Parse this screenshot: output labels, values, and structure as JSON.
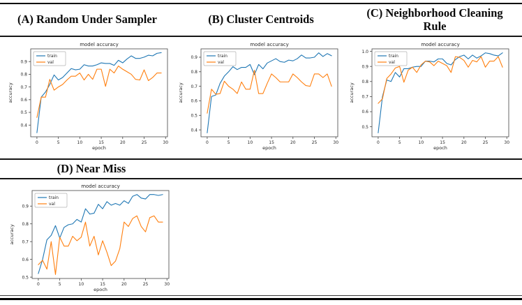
{
  "panels": [
    {
      "label": "(A) Random Under Sampler"
    },
    {
      "label": "(B) Cluster Centroids"
    },
    {
      "label": "(C) Neighborhood Cleaning Rule"
    },
    {
      "label": "(D) Near Miss"
    }
  ],
  "colors": {
    "train": "#1f77b4",
    "val": "#ff7f0e",
    "spine": "#454545",
    "chart_text": "#262626",
    "legend_border": "#b3b3b3",
    "rule": "#000000"
  },
  "epochs": [
    0,
    1,
    2,
    3,
    4,
    5,
    6,
    7,
    8,
    9,
    10,
    11,
    12,
    13,
    14,
    15,
    16,
    17,
    18,
    19,
    20,
    21,
    22,
    23,
    24,
    25,
    26,
    27,
    28,
    29
  ],
  "chart_data": [
    {
      "type": "line",
      "panel": "(A) Random Under Sampler",
      "title": "model accuracy",
      "xlabel": "epoch",
      "ylabel": "accuracy",
      "xticks": [
        0,
        5,
        10,
        15,
        20,
        25,
        30
      ],
      "yticks": [
        0.4,
        0.5,
        0.6,
        0.7,
        0.8,
        0.9
      ],
      "xlim": [
        -1.45,
        30.45
      ],
      "ylim": [
        0.308,
        1.0
      ],
      "grid": false,
      "legend_position": "upper left",
      "series": [
        {
          "name": "train",
          "values": [
            0.34,
            0.62,
            0.66,
            0.72,
            0.795,
            0.755,
            0.775,
            0.81,
            0.845,
            0.835,
            0.84,
            0.875,
            0.865,
            0.865,
            0.875,
            0.89,
            0.885,
            0.885,
            0.87,
            0.91,
            0.89,
            0.92,
            0.945,
            0.925,
            0.925,
            0.935,
            0.95,
            0.945,
            0.965,
            0.97
          ]
        },
        {
          "name": "val",
          "values": [
            0.46,
            0.62,
            0.62,
            0.76,
            0.675,
            0.7,
            0.72,
            0.755,
            0.785,
            0.785,
            0.81,
            0.755,
            0.8,
            0.76,
            0.84,
            0.84,
            0.705,
            0.84,
            0.81,
            0.865,
            0.84,
            0.82,
            0.8,
            0.76,
            0.755,
            0.835,
            0.75,
            0.775,
            0.81,
            0.81
          ]
        }
      ]
    },
    {
      "type": "line",
      "panel": "(B) Cluster Centroids",
      "title": "model accuracy",
      "xlabel": "epoch",
      "ylabel": "accuracy",
      "xticks": [
        0,
        5,
        10,
        15,
        20,
        25,
        30
      ],
      "yticks": [
        0.4,
        0.5,
        0.6,
        0.7,
        0.8,
        0.9
      ],
      "xlim": [
        -1.45,
        30.45
      ],
      "ylim": [
        0.3525,
        0.9575
      ],
      "grid": false,
      "legend_position": "upper left",
      "series": [
        {
          "name": "train",
          "values": [
            0.38,
            0.63,
            0.64,
            0.72,
            0.77,
            0.8,
            0.835,
            0.815,
            0.83,
            0.83,
            0.85,
            0.78,
            0.85,
            0.82,
            0.86,
            0.875,
            0.89,
            0.87,
            0.865,
            0.88,
            0.875,
            0.89,
            0.915,
            0.895,
            0.895,
            0.9,
            0.93,
            0.905,
            0.925,
            0.91
          ]
        },
        {
          "name": "val",
          "values": [
            0.515,
            0.68,
            0.645,
            0.65,
            0.735,
            0.7,
            0.68,
            0.65,
            0.73,
            0.68,
            0.68,
            0.81,
            0.65,
            0.65,
            0.72,
            0.785,
            0.76,
            0.73,
            0.73,
            0.73,
            0.785,
            0.76,
            0.73,
            0.705,
            0.7,
            0.785,
            0.785,
            0.76,
            0.785,
            0.7
          ]
        }
      ]
    },
    {
      "type": "line",
      "panel": "(C) Neighborhood Cleaning Rule",
      "title": "model accuracy",
      "xlabel": "epoch",
      "ylabel": "accuracy",
      "xticks": [
        0,
        5,
        10,
        15,
        20,
        25,
        30
      ],
      "yticks": [
        0.5,
        0.6,
        0.7,
        0.8,
        0.9,
        1.0
      ],
      "xlim": [
        -1.45,
        30.45
      ],
      "ylim": [
        0.4335,
        1.0165
      ],
      "grid": false,
      "legend_position": "upper left",
      "series": [
        {
          "name": "train",
          "values": [
            0.46,
            0.7,
            0.81,
            0.8,
            0.86,
            0.83,
            0.885,
            0.885,
            0.895,
            0.9,
            0.9,
            0.935,
            0.935,
            0.93,
            0.95,
            0.95,
            0.92,
            0.91,
            0.945,
            0.965,
            0.975,
            0.95,
            0.975,
            0.955,
            0.97,
            0.99,
            0.985,
            0.975,
            0.97,
            0.99
          ]
        },
        {
          "name": "val",
          "values": [
            0.655,
            0.685,
            0.82,
            0.85,
            0.89,
            0.9,
            0.795,
            0.875,
            0.895,
            0.86,
            0.91,
            0.935,
            0.93,
            0.905,
            0.935,
            0.92,
            0.905,
            0.86,
            0.965,
            0.96,
            0.94,
            0.895,
            0.94,
            0.93,
            0.965,
            0.895,
            0.935,
            0.935,
            0.965,
            0.895
          ]
        }
      ]
    },
    {
      "type": "line",
      "panel": "(D) Near Miss",
      "title": "model accuracy",
      "xlabel": "epoch",
      "ylabel": "accuracy",
      "xticks": [
        0,
        5,
        10,
        15,
        20,
        25,
        30
      ],
      "yticks": [
        0.5,
        0.6,
        0.7,
        0.8,
        0.9
      ],
      "xlim": [
        -1.45,
        30.45
      ],
      "ylim": [
        0.4925,
        0.9875
      ],
      "grid": false,
      "legend_position": "upper left",
      "series": [
        {
          "name": "train",
          "values": [
            0.52,
            0.6,
            0.71,
            0.735,
            0.79,
            0.72,
            0.78,
            0.795,
            0.8,
            0.825,
            0.81,
            0.885,
            0.855,
            0.86,
            0.91,
            0.885,
            0.925,
            0.905,
            0.915,
            0.905,
            0.93,
            0.915,
            0.955,
            0.965,
            0.945,
            0.94,
            0.965,
            0.965,
            0.96,
            0.965
          ]
        },
        {
          "name": "val",
          "values": [
            0.57,
            0.595,
            0.545,
            0.7,
            0.515,
            0.725,
            0.675,
            0.675,
            0.73,
            0.705,
            0.725,
            0.81,
            0.675,
            0.73,
            0.625,
            0.705,
            0.64,
            0.565,
            0.59,
            0.66,
            0.81,
            0.785,
            0.83,
            0.845,
            0.785,
            0.755,
            0.835,
            0.845,
            0.81,
            0.81
          ]
        }
      ]
    }
  ]
}
